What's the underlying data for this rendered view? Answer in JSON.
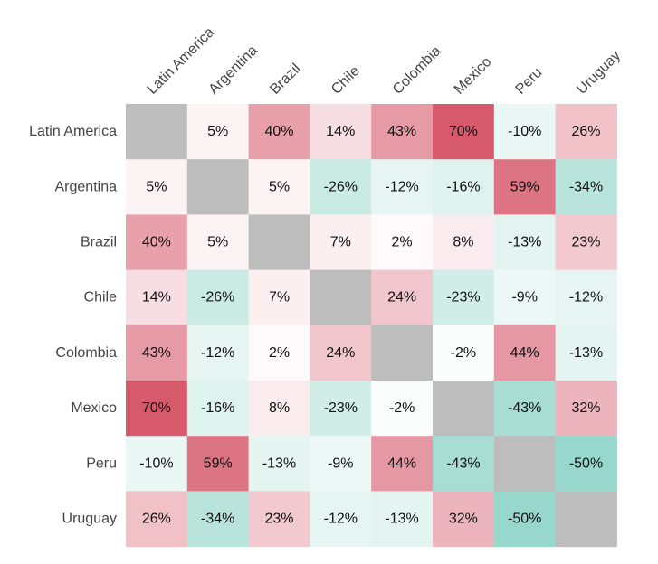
{
  "chart_data": {
    "type": "heatmap",
    "title": "",
    "xlabel": "",
    "ylabel": "",
    "categories_x": [
      "Latin America",
      "Argentina",
      "Brazil",
      "Chile",
      "Colombia",
      "Mexico",
      "Peru",
      "Uruguay"
    ],
    "categories_y": [
      "Latin America",
      "Argentina",
      "Brazil",
      "Chile",
      "Colombia",
      "Mexico",
      "Peru",
      "Uruguay"
    ],
    "value_format": "percent",
    "diagonal": "masked",
    "color_range": [
      -70,
      70
    ],
    "colors": {
      "positive": "#d65a6c",
      "negative": "#6fc7b6",
      "neutral": "#ffffff",
      "masked": "#bdbdbd"
    },
    "values": [
      [
        null,
        5,
        40,
        14,
        43,
        70,
        -10,
        26
      ],
      [
        5,
        null,
        5,
        -26,
        -12,
        -16,
        59,
        -34
      ],
      [
        40,
        5,
        null,
        7,
        2,
        8,
        -13,
        23
      ],
      [
        14,
        -26,
        7,
        null,
        24,
        -23,
        -9,
        -12
      ],
      [
        43,
        -12,
        2,
        24,
        null,
        -2,
        44,
        -13
      ],
      [
        70,
        -16,
        8,
        -23,
        -2,
        null,
        -43,
        32
      ],
      [
        -10,
        59,
        -13,
        -9,
        44,
        -43,
        null,
        -50
      ],
      [
        26,
        -34,
        23,
        -12,
        -13,
        32,
        -50,
        null
      ]
    ],
    "grid": false,
    "legend": "none"
  }
}
